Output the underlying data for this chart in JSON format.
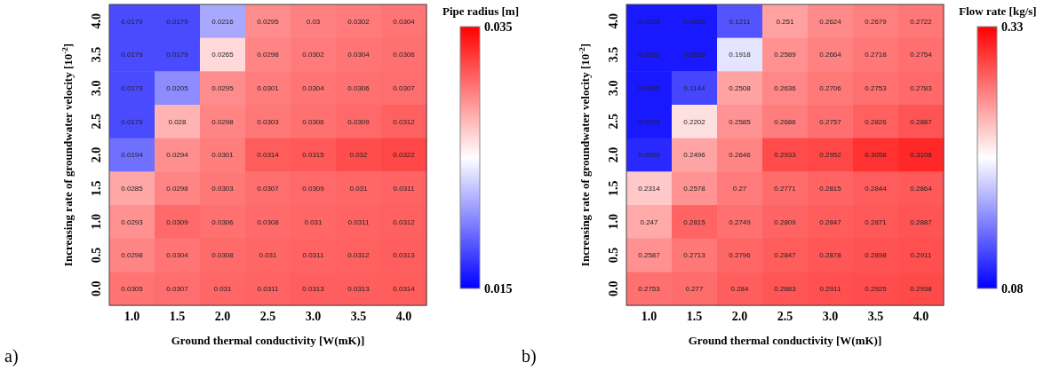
{
  "chart_data": [
    {
      "type": "heatmap",
      "xlabel": "Ground thermal conductivity [W(mK)]",
      "ylabel": "Increasing rate of groundwater velocity [10$^{-2}$]",
      "clabel": "Pipe radius [m]",
      "categories": [
        "1.0",
        "1.5",
        "2.0",
        "2.5",
        "3.0",
        "3.5",
        "4.0"
      ],
      "y_categories": [
        "4.0",
        "3.5",
        "3.0",
        "2.5",
        "2.0",
        "1.5",
        "1.0",
        "0.5",
        "0.0"
      ],
      "cells": [
        [
          0.0179,
          0.0179,
          0.0216,
          0.0295,
          0.03,
          0.0302,
          0.0304
        ],
        [
          0.0179,
          0.0179,
          0.0265,
          0.0298,
          0.0302,
          0.0304,
          0.0306
        ],
        [
          0.0179,
          0.0205,
          0.0295,
          0.0301,
          0.0304,
          0.0306,
          0.0307
        ],
        [
          0.0179,
          0.028,
          0.0298,
          0.0303,
          0.0306,
          0.0309,
          0.0312
        ],
        [
          0.0194,
          0.0294,
          0.0301,
          0.0314,
          0.0315,
          0.032,
          0.0322
        ],
        [
          0.0285,
          0.0298,
          0.0303,
          0.0307,
          0.0309,
          0.031,
          0.0311
        ],
        [
          0.0293,
          0.0309,
          0.0306,
          0.0308,
          0.031,
          0.0311,
          0.0312
        ],
        [
          0.0298,
          0.0304,
          0.0308,
          0.031,
          0.0311,
          0.0312,
          0.0313
        ],
        [
          0.0305,
          0.0307,
          0.031,
          0.0311,
          0.0313,
          0.0313,
          0.0314
        ]
      ],
      "clim": [
        0.015,
        0.035
      ],
      "cticks": [
        0.015,
        0.035
      ],
      "data_labels": true,
      "annotations": [
        "a)"
      ]
    },
    {
      "type": "heatmap",
      "xlabel": "Ground thermal conductivity [W(mK)]",
      "ylabel": "Increasing rate of groundwater velocity [10$^{-2}$]",
      "clabel": "Flow rate [kg/s]",
      "categories": [
        "1.0",
        "1.5",
        "2.0",
        "2.5",
        "3.0",
        "3.5",
        "4.0"
      ],
      "y_categories": [
        "4.0",
        "3.5",
        "3.0",
        "2.5",
        "2.0",
        "1.5",
        "1.0",
        "0.5",
        "0.0"
      ],
      "cells": [
        [
          0.0925,
          0.0925,
          0.1211,
          0.251,
          0.2624,
          0.2679,
          0.2722
        ],
        [
          0.0925,
          0.0925,
          0.1918,
          0.2589,
          0.2664,
          0.2718,
          0.2754
        ],
        [
          0.0925,
          0.1144,
          0.2508,
          0.2636,
          0.2706,
          0.2753,
          0.2783
        ],
        [
          0.0925,
          0.2202,
          0.2585,
          0.2686,
          0.2757,
          0.2826,
          0.2887
        ],
        [
          0.0999,
          0.2496,
          0.2646,
          0.2933,
          0.2952,
          0.3058,
          0.3108
        ],
        [
          0.2314,
          0.2578,
          0.27,
          0.2771,
          0.2815,
          0.2844,
          0.2864
        ],
        [
          0.247,
          0.2815,
          0.2749,
          0.2809,
          0.2847,
          0.2871,
          0.2887
        ],
        [
          0.2587,
          0.2713,
          0.2796,
          0.2847,
          0.2878,
          0.2898,
          0.2911
        ],
        [
          0.2753,
          0.277,
          0.284,
          0.2883,
          0.2911,
          0.2925,
          0.2938
        ]
      ],
      "clim": [
        0.08,
        0.33
      ],
      "cticks": [
        0.08,
        0.33
      ],
      "data_labels": true,
      "annotations": [
        "b)"
      ]
    }
  ]
}
